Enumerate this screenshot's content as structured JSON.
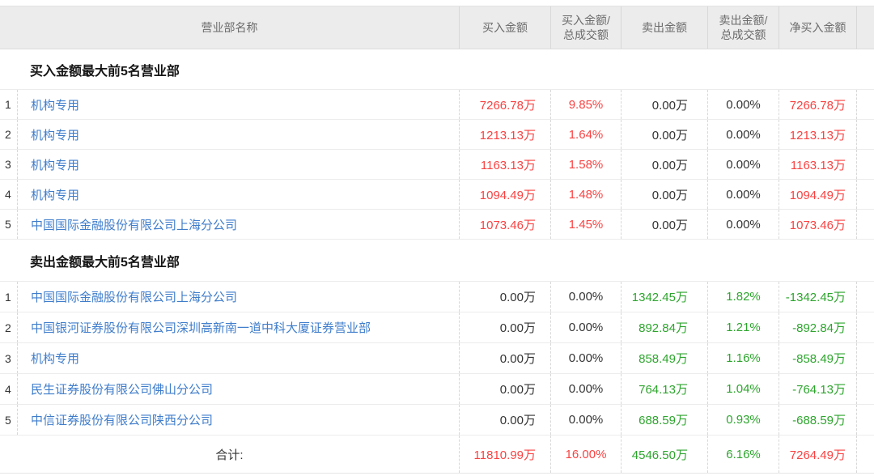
{
  "header": {
    "name_col": "营业部名称",
    "buy_amount": "买入金额",
    "buy_ratio_line1": "买入金额/",
    "buy_ratio_line2": "总成交额",
    "sell_amount": "卖出金额",
    "sell_ratio_line1": "卖出金额/",
    "sell_ratio_line2": "总成交额",
    "net_amount": "净买入金额"
  },
  "sections": [
    {
      "title": "买入金额最大前5名营业部",
      "rows": [
        {
          "rank": "1",
          "name": "机构专用",
          "buy": "7266.78万",
          "buy_pct": "9.85%",
          "sell": "0.00万",
          "sell_pct": "0.00%",
          "net": "7266.78万",
          "colors": {
            "buy": "red",
            "buy_pct": "red",
            "sell": "dark",
            "sell_pct": "dark",
            "net": "red"
          }
        },
        {
          "rank": "2",
          "name": "机构专用",
          "buy": "1213.13万",
          "buy_pct": "1.64%",
          "sell": "0.00万",
          "sell_pct": "0.00%",
          "net": "1213.13万",
          "colors": {
            "buy": "red",
            "buy_pct": "red",
            "sell": "dark",
            "sell_pct": "dark",
            "net": "red"
          }
        },
        {
          "rank": "3",
          "name": "机构专用",
          "buy": "1163.13万",
          "buy_pct": "1.58%",
          "sell": "0.00万",
          "sell_pct": "0.00%",
          "net": "1163.13万",
          "colors": {
            "buy": "red",
            "buy_pct": "red",
            "sell": "dark",
            "sell_pct": "dark",
            "net": "red"
          }
        },
        {
          "rank": "4",
          "name": "机构专用",
          "buy": "1094.49万",
          "buy_pct": "1.48%",
          "sell": "0.00万",
          "sell_pct": "0.00%",
          "net": "1094.49万",
          "colors": {
            "buy": "red",
            "buy_pct": "red",
            "sell": "dark",
            "sell_pct": "dark",
            "net": "red"
          }
        },
        {
          "rank": "5",
          "name": "中国国际金融股份有限公司上海分公司",
          "buy": "1073.46万",
          "buy_pct": "1.45%",
          "sell": "0.00万",
          "sell_pct": "0.00%",
          "net": "1073.46万",
          "colors": {
            "buy": "red",
            "buy_pct": "red",
            "sell": "dark",
            "sell_pct": "dark",
            "net": "red"
          }
        }
      ]
    },
    {
      "title": "卖出金额最大前5名营业部",
      "rows": [
        {
          "rank": "1",
          "name": "中国国际金融股份有限公司上海分公司",
          "buy": "0.00万",
          "buy_pct": "0.00%",
          "sell": "1342.45万",
          "sell_pct": "1.82%",
          "net": "-1342.45万",
          "colors": {
            "buy": "dark",
            "buy_pct": "dark",
            "sell": "green",
            "sell_pct": "green",
            "net": "green"
          }
        },
        {
          "rank": "2",
          "name": "中国银河证券股份有限公司深圳高新南一道中科大厦证券营业部",
          "buy": "0.00万",
          "buy_pct": "0.00%",
          "sell": "892.84万",
          "sell_pct": "1.21%",
          "net": "-892.84万",
          "colors": {
            "buy": "dark",
            "buy_pct": "dark",
            "sell": "green",
            "sell_pct": "green",
            "net": "green"
          }
        },
        {
          "rank": "3",
          "name": "机构专用",
          "buy": "0.00万",
          "buy_pct": "0.00%",
          "sell": "858.49万",
          "sell_pct": "1.16%",
          "net": "-858.49万",
          "colors": {
            "buy": "dark",
            "buy_pct": "dark",
            "sell": "green",
            "sell_pct": "green",
            "net": "green"
          }
        },
        {
          "rank": "4",
          "name": "民生证券股份有限公司佛山分公司",
          "buy": "0.00万",
          "buy_pct": "0.00%",
          "sell": "764.13万",
          "sell_pct": "1.04%",
          "net": "-764.13万",
          "colors": {
            "buy": "dark",
            "buy_pct": "dark",
            "sell": "green",
            "sell_pct": "green",
            "net": "green"
          }
        },
        {
          "rank": "5",
          "name": "中信证券股份有限公司陕西分公司",
          "buy": "0.00万",
          "buy_pct": "0.00%",
          "sell": "688.59万",
          "sell_pct": "0.93%",
          "net": "-688.59万",
          "colors": {
            "buy": "dark",
            "buy_pct": "dark",
            "sell": "green",
            "sell_pct": "green",
            "net": "green"
          }
        }
      ]
    }
  ],
  "total": {
    "label": "合计:",
    "buy": "11810.99万",
    "buy_pct": "16.00%",
    "sell": "4546.50万",
    "sell_pct": "6.16%",
    "net": "7264.49万",
    "colors": {
      "buy": "red",
      "buy_pct": "red",
      "sell": "green",
      "sell_pct": "green",
      "net": "red"
    }
  },
  "colors": {
    "up_red": "#fa4242",
    "down_green": "#2da52d",
    "link_blue": "#3f7dcb",
    "header_bg": "#ececec"
  }
}
